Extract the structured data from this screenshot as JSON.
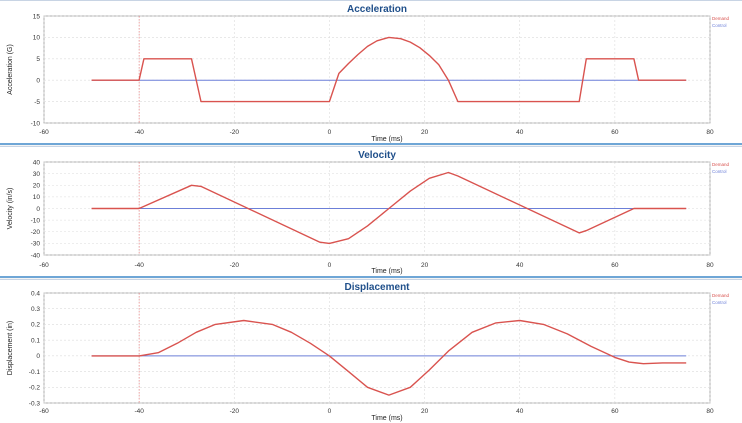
{
  "chart_data": [
    {
      "type": "line",
      "title": "Acceleration",
      "xlabel": "Time (ms)",
      "ylabel": "Acceleration (G)",
      "xlim": [
        -60,
        80
      ],
      "ylim": [
        -10,
        15
      ],
      "xticks": [
        -60,
        -40,
        -20,
        0,
        20,
        40,
        60,
        80
      ],
      "yticks": [
        -10,
        -5,
        0,
        5,
        10,
        15
      ],
      "grid": true,
      "legend_position": "top-right",
      "marker_x": -40,
      "series": [
        {
          "name": "Demand",
          "color": "#d9534f",
          "x": [
            -50,
            -40,
            -39,
            -29,
            -27,
            0,
            2,
            4,
            6,
            8,
            10,
            12.5,
            15,
            17,
            19,
            21,
            23,
            25,
            27,
            52.5,
            54,
            64,
            65,
            75
          ],
          "y": [
            0,
            0,
            5,
            5,
            -5,
            -5,
            1.6,
            3.9,
            6,
            7.9,
            9.2,
            10,
            9.7,
            8.9,
            7.6,
            5.8,
            3.6,
            0,
            -5,
            -5,
            5,
            5,
            0,
            0
          ]
        },
        {
          "name": "Control",
          "color": "#6c7fd8",
          "x": [
            -50,
            75
          ],
          "y": [
            0,
            0
          ]
        }
      ]
    },
    {
      "type": "line",
      "title": "Velocity",
      "xlabel": "Time (ms)",
      "ylabel": "Velocity (in/s)",
      "xlim": [
        -60,
        80
      ],
      "ylim": [
        -40,
        40
      ],
      "xticks": [
        -60,
        -40,
        -20,
        0,
        20,
        40,
        60,
        80
      ],
      "yticks": [
        -40,
        -30,
        -20,
        -10,
        0,
        10,
        20,
        30,
        40
      ],
      "grid": true,
      "legend_position": "top-right",
      "marker_x": -40,
      "series": [
        {
          "name": "Demand",
          "color": "#d9534f",
          "x": [
            -50,
            -40,
            -29,
            -27,
            -2,
            0,
            4,
            8,
            12.5,
            17,
            21,
            25,
            27,
            52.5,
            54,
            64,
            65,
            75
          ],
          "y": [
            0,
            0,
            20,
            19,
            -29,
            -30,
            -26,
            -15,
            0,
            15,
            26,
            31,
            28,
            -21,
            -19,
            0,
            0,
            0
          ]
        },
        {
          "name": "Control",
          "color": "#6c7fd8",
          "x": [
            -50,
            75
          ],
          "y": [
            0,
            0
          ]
        }
      ]
    },
    {
      "type": "line",
      "title": "Displacement",
      "xlabel": "Time (ms)",
      "ylabel": "Displacement (in)",
      "xlim": [
        -60,
        80
      ],
      "ylim": [
        -0.3,
        0.4
      ],
      "xticks": [
        -60,
        -40,
        -20,
        0,
        20,
        40,
        60,
        80
      ],
      "yticks": [
        -0.3,
        -0.2,
        -0.1,
        0,
        0.1,
        0.2,
        0.3,
        0.4
      ],
      "grid": true,
      "legend_position": "top-right",
      "marker_x": -40,
      "series": [
        {
          "name": "Demand",
          "color": "#d9534f",
          "x": [
            -50,
            -40,
            -36,
            -32,
            -28,
            -24,
            -18,
            -12,
            -8,
            -4,
            0,
            4,
            8,
            12.5,
            17,
            21,
            25,
            30,
            35,
            40,
            45,
            50,
            55,
            60,
            63,
            66,
            70,
            75
          ],
          "y": [
            0,
            0,
            0.02,
            0.08,
            0.15,
            0.2,
            0.225,
            0.2,
            0.15,
            0.08,
            0,
            -0.1,
            -0.2,
            -0.25,
            -0.2,
            -0.09,
            0.03,
            0.15,
            0.21,
            0.225,
            0.2,
            0.14,
            0.06,
            -0.01,
            -0.04,
            -0.05,
            -0.045,
            -0.045
          ]
        },
        {
          "name": "Control",
          "color": "#6c7fd8",
          "x": [
            -50,
            75
          ],
          "y": [
            0,
            0
          ]
        }
      ]
    }
  ]
}
